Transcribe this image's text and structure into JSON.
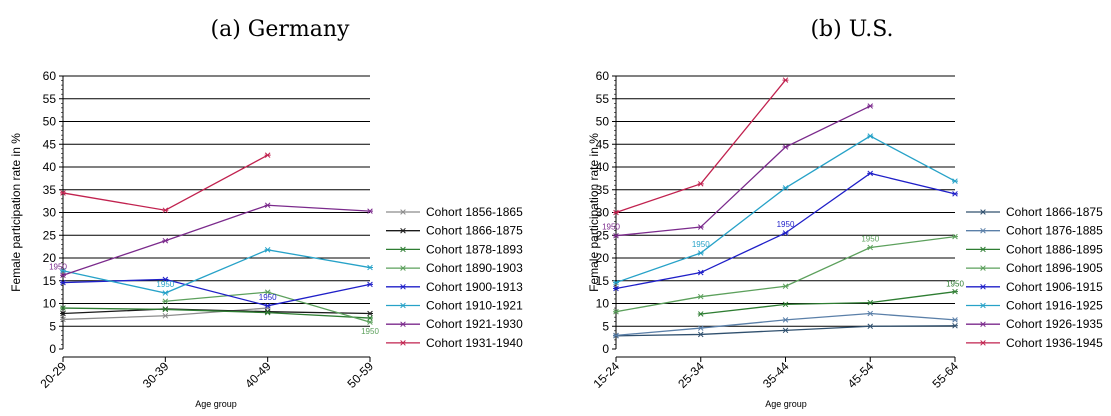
{
  "chart_data": [
    {
      "type": "line",
      "title": "(a) Germany",
      "ylabel": "Female participation rate in %",
      "xlabel": "Age group",
      "categories": [
        "20-29",
        "30-39",
        "40-49",
        "50-59"
      ],
      "ylim": [
        0,
        60
      ],
      "yticks": [
        0,
        5,
        10,
        15,
        20,
        25,
        30,
        35,
        40,
        45,
        50,
        55,
        60
      ],
      "grid": true,
      "legend_position": "right",
      "series": [
        {
          "name": "Cohort 1856-1865",
          "color": "#8c8c8c",
          "values": [
            6.5,
            7.3,
            9.0,
            null
          ]
        },
        {
          "name": "Cohort 1866-1875",
          "color": "#1a1a1a",
          "values": [
            7.8,
            8.8,
            8.2,
            7.8
          ]
        },
        {
          "name": "Cohort 1878-1893",
          "color": "#2e7d32",
          "values": [
            9.0,
            8.7,
            8.0,
            6.8
          ]
        },
        {
          "name": "Cohort 1890-1903",
          "color": "#5ca05c",
          "values": [
            null,
            10.5,
            12.5,
            5.9
          ]
        },
        {
          "name": "Cohort 1900-1913",
          "color": "#1f1fc8",
          "values": [
            14.6,
            15.3,
            9.5,
            14.2
          ]
        },
        {
          "name": "Cohort 1910-1921",
          "color": "#27a2c8",
          "values": [
            17.2,
            12.3,
            21.8,
            17.9
          ]
        },
        {
          "name": "Cohort 1921-1930",
          "color": "#7b2a8c",
          "values": [
            16.2,
            23.8,
            31.6,
            30.3
          ]
        },
        {
          "name": "Cohort 1931-1940",
          "color": "#c1224f",
          "values": [
            34.3,
            30.5,
            42.6,
            null
          ]
        }
      ],
      "annotations": [
        {
          "text": "1950",
          "series": "Cohort 1921-1930",
          "x": "20-29",
          "y": 16.2
        },
        {
          "text": "1950",
          "series": "Cohort 1910-1921",
          "x": "30-39",
          "y": 12.3
        },
        {
          "text": "1950",
          "series": "Cohort 1900-1913",
          "x": "40-49",
          "y": 9.5
        },
        {
          "text": "1950",
          "series": "Cohort 1890-1903",
          "x": "50-59",
          "y": 5.9
        }
      ]
    },
    {
      "type": "line",
      "title": "(b) U.S.",
      "ylabel": "Female participation rate in %",
      "xlabel": "Age group",
      "categories": [
        "15-24",
        "25-34",
        "35-44",
        "45-54",
        "55-64"
      ],
      "ylim": [
        0,
        60
      ],
      "yticks": [
        0,
        5,
        10,
        15,
        20,
        25,
        30,
        35,
        40,
        45,
        50,
        55,
        60
      ],
      "grid": true,
      "legend_position": "right",
      "series": [
        {
          "name": "Cohort 1866-1875",
          "color": "#30506e",
          "values": [
            2.9,
            3.2,
            4.1,
            5.0,
            5.1
          ]
        },
        {
          "name": "Cohort 1876-1885",
          "color": "#5a7fa8",
          "values": [
            3.0,
            4.6,
            6.4,
            7.8,
            6.4
          ]
        },
        {
          "name": "Cohort 1886-1895",
          "color": "#2e7d32",
          "values": [
            null,
            7.7,
            9.8,
            10.2,
            12.6
          ]
        },
        {
          "name": "Cohort 1896-1905",
          "color": "#5ca05c",
          "values": [
            8.2,
            11.5,
            13.8,
            22.3,
            24.7
          ]
        },
        {
          "name": "Cohort 1906-1915",
          "color": "#1f1fc8",
          "values": [
            13.3,
            16.8,
            25.5,
            38.6,
            34.1
          ]
        },
        {
          "name": "Cohort 1916-1925",
          "color": "#27a2c8",
          "values": [
            14.6,
            21.1,
            35.4,
            46.8,
            36.9
          ]
        },
        {
          "name": "Cohort 1926-1935",
          "color": "#7b2a8c",
          "values": [
            24.9,
            26.8,
            44.4,
            53.4,
            null
          ]
        },
        {
          "name": "Cohort 1936-1945",
          "color": "#c1224f",
          "values": [
            30.0,
            36.3,
            59.1,
            null,
            null
          ]
        }
      ],
      "annotations": [
        {
          "text": "1950",
          "series": "Cohort 1926-1935",
          "x": "15-24",
          "y": 24.9
        },
        {
          "text": "1950",
          "series": "Cohort 1916-1925",
          "x": "25-34",
          "y": 21.1
        },
        {
          "text": "1950",
          "series": "Cohort 1906-1915",
          "x": "35-44",
          "y": 25.5
        },
        {
          "text": "1950",
          "series": "Cohort 1896-1905",
          "x": "45-54",
          "y": 22.3
        },
        {
          "text": "1950",
          "series": "Cohort 1886-1895",
          "x": "55-64",
          "y": 12.6
        }
      ]
    }
  ]
}
